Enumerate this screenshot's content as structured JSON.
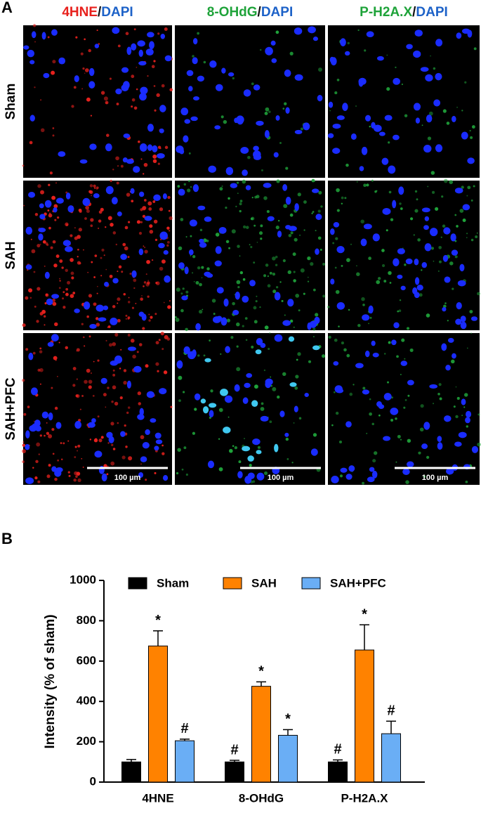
{
  "panel_labels": [
    "A",
    "B"
  ],
  "figure_a": {
    "column_headers": [
      {
        "parts": [
          "4HNE",
          "/",
          "DAPI"
        ],
        "colors": [
          "#e8211d",
          "#111111",
          "#1d62c8"
        ]
      },
      {
        "parts": [
          "8-OHdG",
          "/",
          "DAPI"
        ],
        "colors": [
          "#1fa33a",
          "#111111",
          "#1d62c8"
        ]
      },
      {
        "parts": [
          "P-H2A.X",
          "/",
          "DAPI"
        ],
        "colors": [
          "#1fa33a",
          "#111111",
          "#1d62c8"
        ]
      }
    ],
    "row_labels": [
      "Sham",
      "SAH",
      "SAH+PFC"
    ],
    "scale_bar": "100 µm"
  },
  "chart_data": {
    "type": "bar",
    "y_label": "Intensity (% of sham)",
    "categories": [
      "4HNE",
      "8-OHdG",
      "P-H2A.X"
    ],
    "series": [
      {
        "name": "Sham",
        "color": "#000000",
        "values": [
          100,
          100,
          100
        ],
        "errors": [
          12,
          8,
          10
        ],
        "markers": [
          null,
          "#",
          "#"
        ]
      },
      {
        "name": "SAH",
        "color": "#ff8200",
        "values": [
          675,
          475,
          655
        ],
        "errors": [
          75,
          22,
          125
        ],
        "markers": [
          "*",
          "*",
          "*"
        ]
      },
      {
        "name": "SAH+PFC",
        "color": "#6aaef5",
        "values": [
          205,
          232,
          240
        ],
        "errors": [
          8,
          28,
          62
        ],
        "markers": [
          "#",
          "*",
          "#"
        ]
      }
    ],
    "ylim": [
      0,
      1000
    ],
    "yticks": [
      0,
      200,
      400,
      600,
      800,
      1000
    ]
  }
}
